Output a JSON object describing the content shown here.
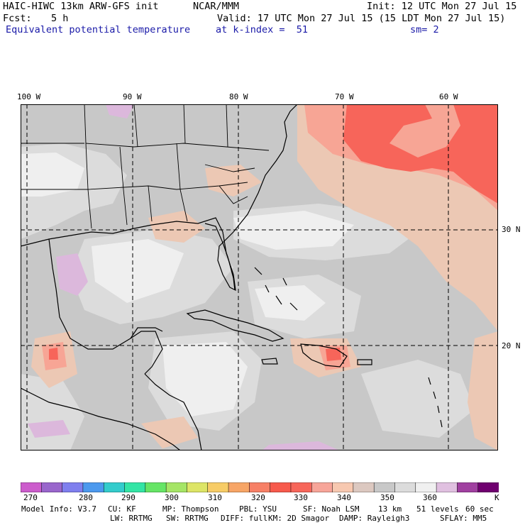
{
  "header": {
    "model_title": "HAIC-HIWC 13km ARW-GFS init",
    "org": "NCAR/MMM",
    "init": "Init: 12 UTC Mon 27 Jul 15",
    "fcst_label": "Fcst:",
    "fcst_value": "5 h",
    "valid": "Valid: 17 UTC Mon 27 Jul 15 (15 LDT Mon 27 Jul 15)",
    "field_name": "Equivalent potential temperature",
    "level": "at k-index =  51",
    "smoothing": "sm= 2"
  },
  "map": {
    "lon_labels": [
      "100 W",
      "90 W",
      "80 W",
      "70 W",
      "60 W"
    ],
    "lat_labels": [
      "30 N",
      "20 N"
    ],
    "land_border_color": "#000000",
    "grid_line_style": "dashed"
  },
  "colorbar": {
    "colors": [
      "#cc5ccc",
      "#9966cc",
      "#7f7fee",
      "#4c99ee",
      "#33cccc",
      "#33e5a5",
      "#66e566",
      "#a5e566",
      "#dde566",
      "#f7cc66",
      "#f7a566",
      "#f78066",
      "#f75a4c",
      "#f7665a",
      "#f7a599",
      "#f7c8b0",
      "#dcc8c0",
      "#c8c8c8",
      "#dcdcdc",
      "#f0f0f0",
      "#e0c0e0",
      "#a040a0",
      "#700070"
    ],
    "tick_labels": [
      "270",
      "280",
      "290",
      "300",
      "310",
      "320",
      "330",
      "340",
      "350",
      "360",
      "K"
    ]
  },
  "model_info": {
    "line1": [
      "Model Info: V3.7",
      "CU: KF",
      "MP: Thompson",
      "PBL: YSU",
      "SF: Noah LSM",
      "13 km",
      "51 levels",
      "60 sec"
    ],
    "line2": [
      "LW: RRTMG",
      "SW: RRTMG",
      "DIFF: full",
      "KM: 2D Smagor",
      "DAMP: Rayleigh3",
      "SFLAY: MM5"
    ]
  }
}
